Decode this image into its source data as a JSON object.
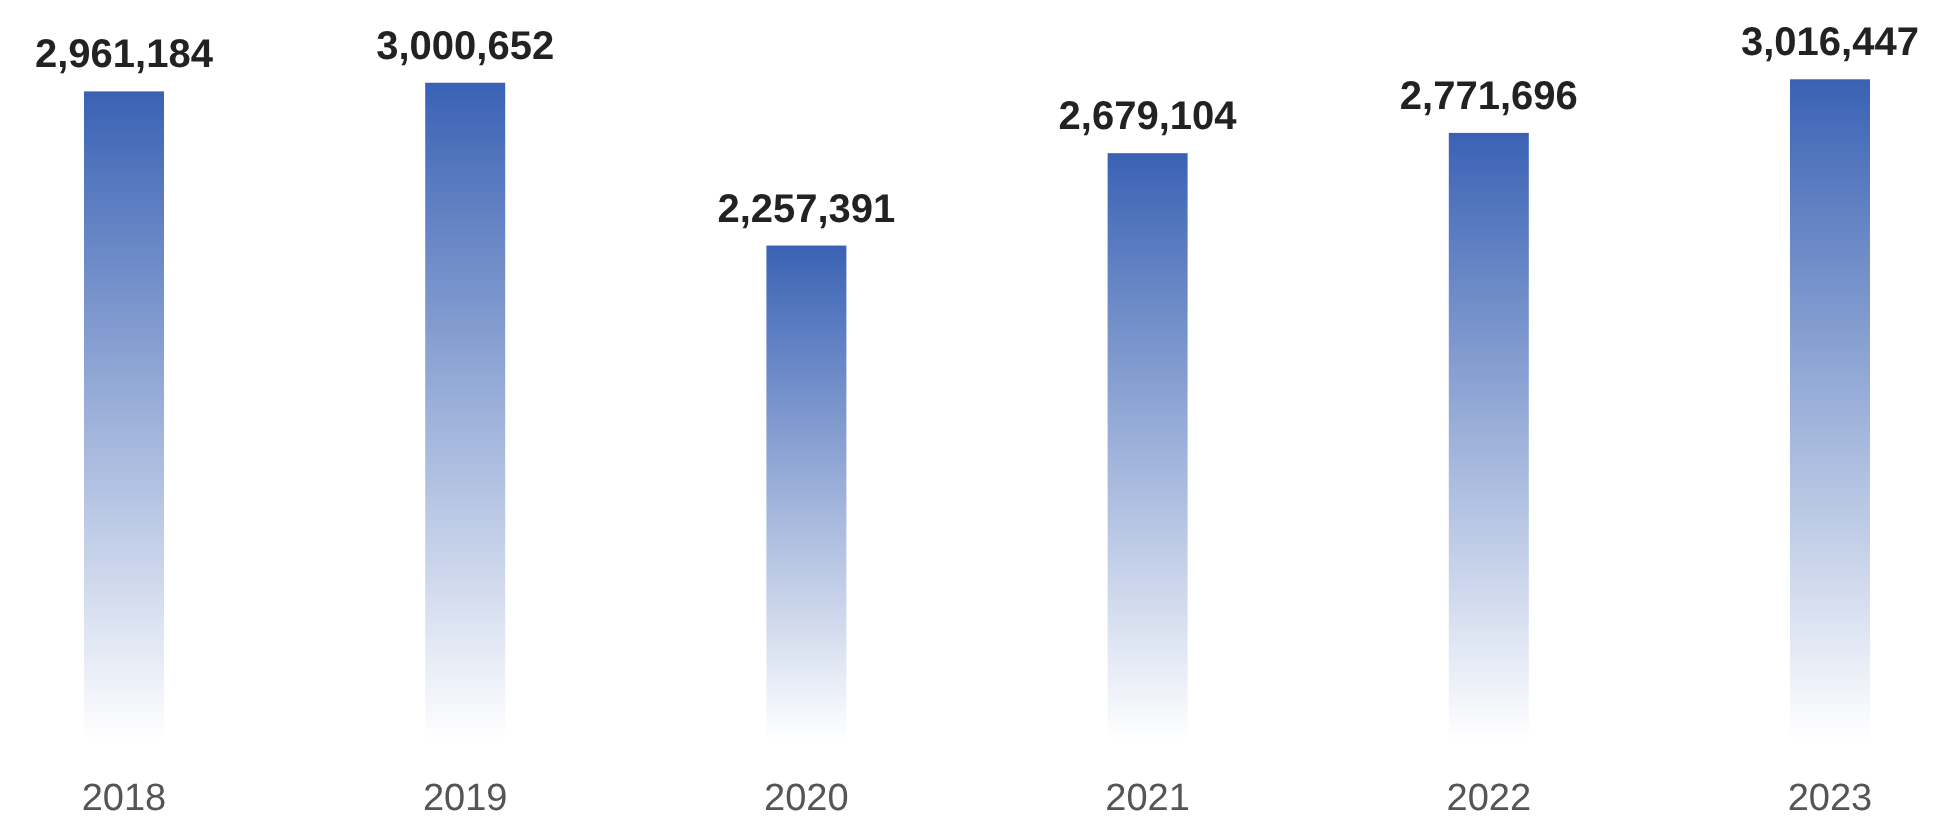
{
  "chart_data": {
    "type": "bar",
    "categories": [
      "2018",
      "2019",
      "2020",
      "2021",
      "2022",
      "2023"
    ],
    "values": [
      2961184,
      3000652,
      2257391,
      2679104,
      2771696,
      3016447
    ],
    "value_labels": [
      "2,961,184",
      "3,000,652",
      "2,257,391",
      "2,679,104",
      "2,771,696",
      "3,016,447"
    ],
    "color": "#3a62b4"
  }
}
